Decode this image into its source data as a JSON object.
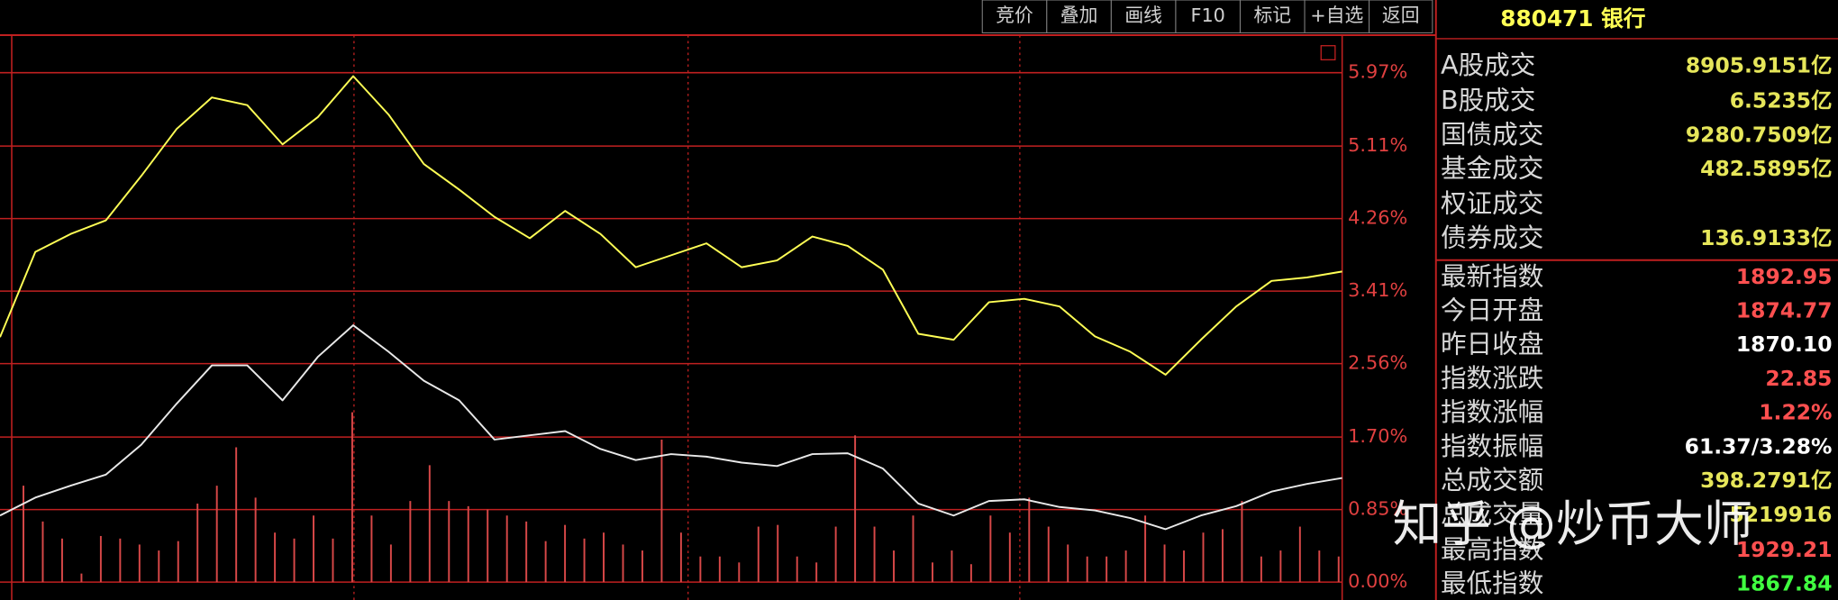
{
  "toolbar": {
    "buttons": [
      "竞价",
      "叠加",
      "画线",
      "F10",
      "标记",
      "+自选",
      "返回"
    ]
  },
  "panel": {
    "title": "880471 银行",
    "rows": [
      {
        "label": "A股成交",
        "value": "8905.9151亿",
        "color": "#e6e65a"
      },
      {
        "label": "B股成交",
        "value": "6.5235亿",
        "color": "#e6e65a"
      },
      {
        "label": "国债成交",
        "value": "9280.7509亿",
        "color": "#e6e65a"
      },
      {
        "label": "基金成交",
        "value": "482.5895亿",
        "color": "#e6e65a"
      },
      {
        "label": "权证成交",
        "value": "",
        "color": "#e6e65a"
      },
      {
        "label": "债券成交",
        "value": "136.9133亿",
        "color": "#e6e65a"
      },
      {
        "label": "最新指数",
        "value": "1892.95",
        "color": "#ff5050"
      },
      {
        "label": "今日开盘",
        "value": "1874.77",
        "color": "#ff5050"
      },
      {
        "label": "昨日收盘",
        "value": "1870.10",
        "color": "#ffffff"
      },
      {
        "label": "指数涨跌",
        "value": "22.85",
        "color": "#ff5050"
      },
      {
        "label": "指数涨幅",
        "value": "1.22%",
        "color": "#ff5050"
      },
      {
        "label": "指数振幅",
        "value": "61.37/3.28%",
        "color": "#ffffff"
      },
      {
        "label": "总成交额",
        "value": "398.2791亿",
        "color": "#e6e65a"
      },
      {
        "label": "总成交量",
        "value": "5219916",
        "color": "#e6e65a"
      },
      {
        "label": "最高指数",
        "value": "1929.21",
        "color": "#ff5050"
      },
      {
        "label": "最低指数",
        "value": "1867.84",
        "color": "#40ff40"
      }
    ]
  },
  "watermark": "知乎 @炒币大师",
  "chart_data": {
    "type": "line",
    "ylim": [
      -0.21,
      6.41
    ],
    "yticks": [
      {
        "value": 5.97,
        "label": "5.97%"
      },
      {
        "value": 5.11,
        "label": "5.11%"
      },
      {
        "value": 4.26,
        "label": "4.26%"
      },
      {
        "value": 3.41,
        "label": "3.41%"
      },
      {
        "value": 2.56,
        "label": "2.56%"
      },
      {
        "value": 1.7,
        "label": "1.70%"
      },
      {
        "value": 0.85,
        "label": "0.85%"
      },
      {
        "value": 0,
        "label": "0.00%"
      }
    ],
    "grid": true,
    "series": [
      {
        "color": "#ffff55",
        "values": [
          2.87,
          3.87,
          4.08,
          4.24,
          4.76,
          5.31,
          5.68,
          5.59,
          5.13,
          5.45,
          5.93,
          5.48,
          4.9,
          4.6,
          4.28,
          4.03,
          4.35,
          4.08,
          3.69,
          3.83,
          3.97,
          3.69,
          3.77,
          4.05,
          3.94,
          3.66,
          2.91,
          2.84,
          3.28,
          3.32,
          3.23,
          2.88,
          2.7,
          2.43,
          2.84,
          3.23,
          3.53,
          3.57,
          3.64
        ]
      },
      {
        "color": "#e8e8e8",
        "values": [
          0.78,
          0.99,
          1.13,
          1.26,
          1.61,
          2.09,
          2.54,
          2.54,
          2.13,
          2.64,
          3.01,
          2.7,
          2.36,
          2.13,
          1.67,
          1.72,
          1.77,
          1.56,
          1.43,
          1.5,
          1.47,
          1.4,
          1.36,
          1.5,
          1.51,
          1.33,
          0.92,
          0.78,
          0.95,
          0.97,
          0.88,
          0.84,
          0.75,
          0.62,
          0.78,
          0.89,
          1.06,
          1.15,
          1.22
        ]
      }
    ],
    "volume": {
      "color": "#d84848",
      "values": [
        1.13,
        0.71,
        0.51,
        0.1,
        0.54,
        0.51,
        0.44,
        0.37,
        0.48,
        0.92,
        1.13,
        1.58,
        0.99,
        0.58,
        0.51,
        0.78,
        0.51,
        1.99,
        0.78,
        0.44,
        0.95,
        1.37,
        0.95,
        0.89,
        0.85,
        0.78,
        0.71,
        0.48,
        0.67,
        0.51,
        0.58,
        0.44,
        0.37,
        1.67,
        0.58,
        0.3,
        0.3,
        0.23,
        0.65,
        0.67,
        0.3,
        0.23,
        0.65,
        1.72,
        0.65,
        0.37,
        0.78,
        0.23,
        0.37,
        0.21,
        0.78,
        0.58,
        0.99,
        0.65,
        0.44,
        0.3,
        0.3,
        0.37,
        0.78,
        0.44,
        0.37,
        0.58,
        0.62,
        0.95,
        0.3,
        0.37,
        0.65,
        0.37,
        0.3
      ]
    }
  }
}
